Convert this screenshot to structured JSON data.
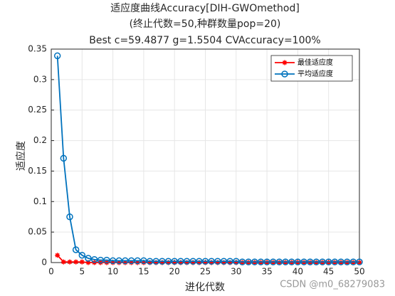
{
  "chart_data": {
    "type": "line",
    "title": [
      "适应度曲线Accuracy[DIH-GWOmethod]",
      "(终止代数=50,种群数量pop=20)",
      "Best c=59.4877 g=1.5504 CVAccuracy=100%"
    ],
    "x_label": "进化代数",
    "y_label": "适应度",
    "x": [
      1,
      2,
      3,
      4,
      5,
      6,
      7,
      8,
      9,
      10,
      11,
      12,
      13,
      14,
      15,
      16,
      17,
      18,
      19,
      20,
      21,
      22,
      23,
      24,
      25,
      26,
      27,
      28,
      29,
      30,
      31,
      32,
      33,
      34,
      35,
      36,
      37,
      38,
      39,
      40,
      41,
      42,
      43,
      44,
      45,
      46,
      47,
      48,
      49,
      50
    ],
    "series": [
      {
        "name": "最佳适应度",
        "color": "#ff0000",
        "marker": "star",
        "values": [
          0.012,
          0.001,
          0.001,
          0.001,
          0.001,
          0,
          0,
          0,
          0,
          0,
          0,
          0,
          0,
          0,
          0,
          0,
          0,
          0,
          0,
          0,
          0,
          0,
          0,
          0,
          0,
          0,
          0,
          0,
          0,
          0,
          0,
          0,
          0,
          0,
          0,
          0,
          0,
          0,
          0,
          0,
          0,
          0,
          0,
          0,
          0,
          0,
          0,
          0,
          0,
          0
        ]
      },
      {
        "name": "平均适应度",
        "color": "#0072bd",
        "marker": "circle",
        "values": [
          0.339,
          0.171,
          0.075,
          0.021,
          0.012,
          0.007,
          0.005,
          0.004,
          0.004,
          0.003,
          0.003,
          0.003,
          0.003,
          0.003,
          0.003,
          0.002,
          0.002,
          0.002,
          0.002,
          0.002,
          0.002,
          0.002,
          0.002,
          0.002,
          0.002,
          0.002,
          0.002,
          0.002,
          0.002,
          0.002,
          0.001,
          0.001,
          0.001,
          0.001,
          0.001,
          0.001,
          0.001,
          0.001,
          0.001,
          0.001,
          0.001,
          0.001,
          0.001,
          0.001,
          0.001,
          0.001,
          0.001,
          0.001,
          0.001,
          0.001
        ]
      }
    ],
    "xlim": [
      0,
      50
    ],
    "xticks": [
      0,
      5,
      10,
      15,
      20,
      25,
      30,
      35,
      40,
      45,
      50
    ],
    "ylim": [
      0,
      0.35
    ],
    "yticks": [
      0,
      0.05,
      0.1,
      0.15,
      0.2,
      0.25,
      0.3,
      0.35
    ],
    "grid": true,
    "legend_position": "northeast"
  },
  "watermark": "CSDN @m0_68279083"
}
